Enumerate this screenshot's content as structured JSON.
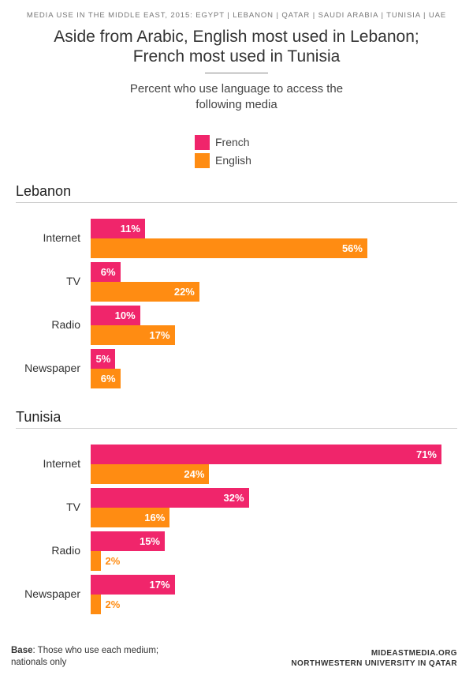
{
  "header": {
    "supertitle": "MEDIA USE IN THE MIDDLE EAST, 2015: EGYPT | LEBANON | QATAR | SAUDI ARABIA | TUNISIA | UAE",
    "title_line1": "Aside from Arabic, English most used in Lebanon;",
    "title_line2": "French most used in Tunisia",
    "subtitle_line1": "Percent who use language to access the",
    "subtitle_line2": "following media"
  },
  "footer": {
    "base_label": "Base",
    "base_line1": ": Those who use each medium;",
    "base_line2": "nationals only",
    "source_line1": "MIDEASTMEDIA.ORG",
    "source_line2": "NORTHWESTERN UNIVERSITY IN QATAR"
  },
  "chart_data": {
    "type": "bar",
    "orientation": "horizontal",
    "value_suffix": "%",
    "legend": [
      {
        "name": "French",
        "color": "#f0256b"
      },
      {
        "name": "English",
        "color": "#ff8c12"
      }
    ],
    "legend_placement": "top-center",
    "grid": false,
    "xlim": [
      0,
      71
    ],
    "panels": [
      {
        "title": "Lebanon",
        "categories": [
          "Internet",
          "TV",
          "Radio",
          "Newspaper"
        ],
        "series": [
          {
            "name": "French",
            "values": [
              11,
              6,
              10,
              5
            ]
          },
          {
            "name": "English",
            "values": [
              56,
              22,
              17,
              6
            ]
          }
        ]
      },
      {
        "title": "Tunisia",
        "categories": [
          "Internet",
          "TV",
          "Radio",
          "Newspaper"
        ],
        "series": [
          {
            "name": "French",
            "values": [
              71,
              32,
              15,
              17
            ]
          },
          {
            "name": "English",
            "values": [
              24,
              16,
              2,
              2
            ]
          }
        ]
      }
    ]
  }
}
